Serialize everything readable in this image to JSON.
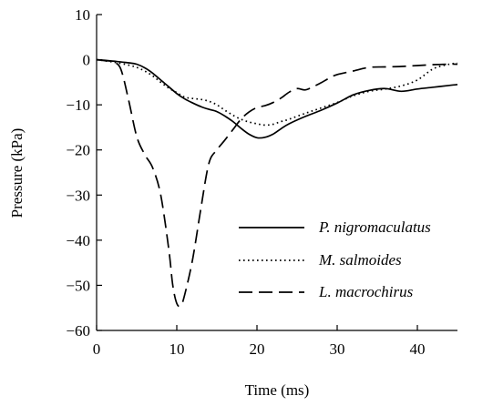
{
  "chart_data": {
    "type": "line",
    "xlabel": "Time (ms)",
    "ylabel": "Pressure (kPa)",
    "xlim": [
      0,
      45
    ],
    "ylim": [
      -60,
      10
    ],
    "x_ticks": [
      0,
      10,
      20,
      30,
      40
    ],
    "y_ticks": [
      10,
      0,
      -10,
      -20,
      -30,
      -40,
      -50,
      -60
    ],
    "grid": false,
    "legend_position": "bottom-right",
    "series": [
      {
        "name": "P. nigromaculatus",
        "style": "solid",
        "color": "#000000",
        "x": [
          0,
          2,
          4,
          5,
          6,
          7,
          8,
          9,
          10,
          11,
          12,
          13,
          14,
          15,
          16,
          17,
          18,
          19,
          20,
          21,
          22,
          23,
          24,
          26,
          28,
          30,
          32,
          34,
          36,
          38,
          40,
          42,
          44,
          45
        ],
        "y": [
          0,
          -0.3,
          -0.7,
          -1,
          -1.8,
          -3,
          -4.5,
          -6,
          -7.5,
          -8.7,
          -9.6,
          -10.4,
          -11,
          -11.5,
          -12.5,
          -13.7,
          -15.2,
          -16.5,
          -17.3,
          -17.2,
          -16.5,
          -15.3,
          -14.2,
          -12.6,
          -11.2,
          -9.6,
          -7.8,
          -6.8,
          -6.4,
          -7,
          -6.5,
          -6.1,
          -5.7,
          -5.5
        ]
      },
      {
        "name": "M. salmoides",
        "style": "dotted",
        "color": "#000000",
        "x": [
          0,
          2,
          4,
          5,
          6,
          7,
          8,
          9,
          10,
          11,
          12,
          13,
          14,
          15,
          16,
          17,
          18,
          19,
          20,
          21,
          22,
          23,
          24,
          26,
          28,
          30,
          32,
          34,
          36,
          38,
          40,
          42,
          44,
          45
        ],
        "y": [
          0,
          -0.5,
          -1.2,
          -1.7,
          -2.5,
          -3.6,
          -5,
          -6.3,
          -7.3,
          -8.3,
          -8.6,
          -8.8,
          -9.2,
          -10,
          -11.2,
          -12.3,
          -13.2,
          -13.8,
          -14.2,
          -14.5,
          -14.3,
          -13.7,
          -13.2,
          -11.9,
          -10.7,
          -9.5,
          -8,
          -7,
          -6.5,
          -5.8,
          -4.5,
          -2,
          -1,
          -0.8
        ]
      },
      {
        "name": "L. macrochirus",
        "style": "dashed",
        "color": "#000000",
        "x": [
          0,
          1,
          2,
          3,
          4,
          5,
          6,
          7,
          8,
          9,
          9.5,
          10,
          10.5,
          11,
          12,
          13,
          14,
          15,
          16,
          17,
          18,
          19,
          20,
          21,
          22,
          23,
          24,
          25,
          26,
          27,
          28,
          29,
          30,
          32,
          34,
          36,
          38,
          40,
          42,
          44,
          45
        ],
        "y": [
          0,
          -0.2,
          -0.5,
          -2,
          -9,
          -17,
          -21,
          -24,
          -30,
          -42,
          -50,
          -54,
          -54.5,
          -52,
          -44,
          -33,
          -23,
          -20,
          -17.8,
          -15.5,
          -13.2,
          -11.6,
          -10.6,
          -10.2,
          -9.5,
          -8.5,
          -7.2,
          -6.4,
          -6.7,
          -6,
          -5.1,
          -4.1,
          -3.3,
          -2.5,
          -1.7,
          -1.6,
          -1.5,
          -1.3,
          -1.1,
          -1,
          -1
        ]
      }
    ]
  }
}
